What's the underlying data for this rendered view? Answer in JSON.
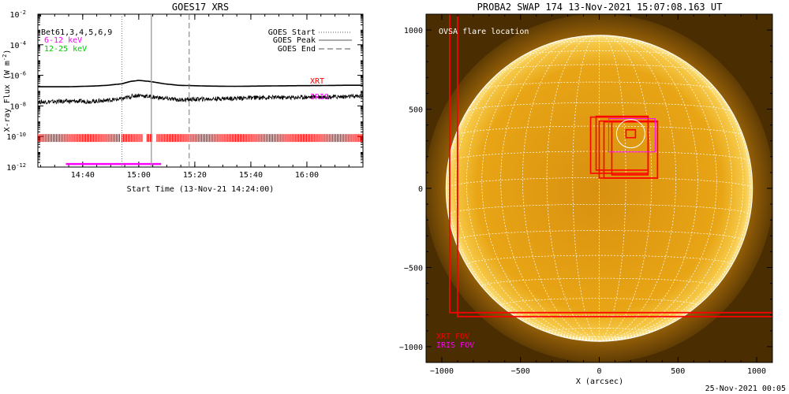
{
  "colors": {
    "xrt": "#ff0000",
    "iris": "#ff00ff",
    "low_band": "#ff00ff",
    "high_band": "#00cc00",
    "sun_core": "#e8a515",
    "sun_edge": "#f5c040",
    "grid": "#ffffff"
  },
  "chart_data": [
    {
      "type": "line",
      "title": "GOES17 XRS",
      "xlabel": "Start Time (13-Nov-21 14:24:00)",
      "ylabel": "X-ray Flux (W m",
      "ylabel_sup": "-2",
      "ylabel_close": ")",
      "xlim_minutes": [
        0,
        116
      ],
      "ylog_range": [
        -12,
        -2
      ],
      "x_ticks": [
        {
          "m": 16,
          "label": "14:40"
        },
        {
          "m": 36,
          "label": "15:00"
        },
        {
          "m": 56,
          "label": "15:20"
        },
        {
          "m": 76,
          "label": "15:40"
        },
        {
          "m": 96,
          "label": "16:00"
        }
      ],
      "y_ticks": [
        {
          "e": -12,
          "mant": "10",
          "exp": "-12"
        },
        {
          "e": -10,
          "mant": "10",
          "exp": "-10"
        },
        {
          "e": -8,
          "mant": "10",
          "exp": "-8"
        },
        {
          "e": -6,
          "mant": "10",
          "exp": "-6"
        },
        {
          "e": -4,
          "mant": "10",
          "exp": "-4"
        },
        {
          "e": -2,
          "mant": "10",
          "exp": "-2"
        }
      ],
      "series": [
        {
          "name": "",
          "x": [
            0,
            10,
            20,
            25,
            30,
            33,
            36,
            40,
            45,
            50,
            60,
            70,
            80,
            90,
            100,
            110,
            116
          ],
          "log_y": [
            -6.75,
            -6.75,
            -6.7,
            -6.65,
            -6.55,
            -6.4,
            -6.33,
            -6.4,
            -6.55,
            -6.65,
            -6.7,
            -6.72,
            -6.7,
            -6.68,
            -6.67,
            -6.65,
            -6.65
          ]
        },
        {
          "name": "",
          "x": [
            0,
            10,
            20,
            30,
            34,
            36,
            40,
            50,
            60,
            70,
            80,
            90,
            100,
            110,
            116
          ],
          "log_y": [
            -7.75,
            -7.7,
            -7.7,
            -7.55,
            -7.35,
            -7.3,
            -7.4,
            -7.6,
            -7.55,
            -7.5,
            -7.45,
            -7.45,
            -7.4,
            -7.4,
            -7.35
          ]
        }
      ],
      "legend": {
        "labels": [
          "Bet61,3,4,5,6,9",
          "6-12 keV",
          "12-25 keV"
        ],
        "goes": [
          "GOES Start",
          "GOES Peak",
          "GOES End"
        ]
      },
      "goes_times_minutes": {
        "start": 30,
        "peak": 40.5,
        "end": 54
      },
      "instrument_labels": {
        "xrt": "XRT",
        "iris": "IRIS"
      },
      "xrt_coverage": {
        "log_y": -10.1,
        "ranges": [
          [
            0,
            29.5
          ],
          [
            30,
            37.5
          ],
          [
            39,
            41
          ],
          [
            42.5,
            116
          ]
        ]
      },
      "iris_coverage": {
        "log_y": -11.8,
        "range": [
          10,
          44
        ]
      }
    },
    {
      "type": "image",
      "title": "PROBA2 SWAP 174 13-Nov-2021 15:07:08.163 UT",
      "xlabel": "X (arcsec)",
      "ylabel": "",
      "xlim": [
        -1100,
        1100
      ],
      "ylim": [
        -1100,
        1100
      ],
      "x_ticks": [
        -1000,
        -500,
        0,
        500,
        1000
      ],
      "y_ticks": [
        -1000,
        -500,
        0,
        500,
        1000
      ],
      "solar_radius": 970,
      "grid_step_deg": 10,
      "flare_label": "OVSA flare location",
      "flare": {
        "x": 200,
        "y": 345
      },
      "fov_label_xrt": "XRT FOV",
      "fov_label_iris": "IRIS FOV",
      "xrt_boxes": [
        {
          "x0": -950,
          "y0": -785,
          "x1": 1120,
          "y1": 1120
        },
        {
          "x0": -900,
          "y0": -810,
          "x1": 1120,
          "y1": 1120
        },
        {
          "x0": -55,
          "y0": 95,
          "x1": 310,
          "y1": 450
        },
        {
          "x0": -20,
          "y0": 115,
          "x1": 310,
          "y1": 455
        },
        {
          "x0": 0,
          "y0": 65,
          "x1": 370,
          "y1": 425
        },
        {
          "x0": 30,
          "y0": 65,
          "x1": 370,
          "y1": 420
        },
        {
          "x0": 80,
          "y0": 85,
          "x1": 310,
          "y1": 420
        },
        {
          "x0": 170,
          "y0": 320,
          "x1": 230,
          "y1": 370
        }
      ],
      "iris_boxes": [
        {
          "x0": 60,
          "y0": 230,
          "x1": 355,
          "y1": 440
        }
      ]
    }
  ],
  "footer": {
    "timestamp": "25-Nov-2021 00:05"
  }
}
